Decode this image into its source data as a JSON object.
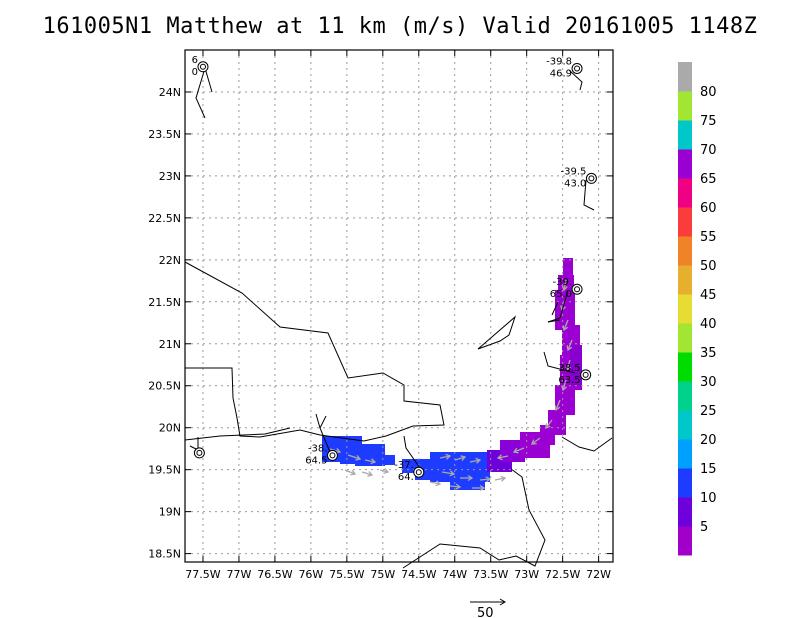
{
  "title": "161005N1 Matthew at 11 km (m/s) Valid 20161005 1148Z",
  "axes": {
    "lon_labels": [
      "77.5W",
      "77W",
      "76.5W",
      "76W",
      "75.5W",
      "75W",
      "74.5W",
      "74W",
      "73.5W",
      "73W",
      "72.5W",
      "72W"
    ],
    "lon_values": [
      -77.5,
      -77,
      -76.5,
      -76,
      -75.5,
      -75,
      -74.5,
      -74,
      -73.5,
      -73,
      -72.5,
      -72
    ],
    "lat_labels": [
      "18.5N",
      "19N",
      "19.5N",
      "20N",
      "20.5N",
      "21N",
      "21.5N",
      "22N",
      "22.5N",
      "23N",
      "23.5N",
      "24N"
    ],
    "lat_values": [
      18.5,
      19,
      19.5,
      20,
      20.5,
      21,
      21.5,
      22,
      22.5,
      23,
      23.5,
      24
    ],
    "lon_range": [
      -77.75,
      -71.8
    ],
    "lat_range": [
      18.4,
      24.5
    ]
  },
  "colorbar": {
    "labels": [
      "5",
      "10",
      "15",
      "20",
      "25",
      "30",
      "35",
      "40",
      "45",
      "50",
      "55",
      "60",
      "65",
      "70",
      "75",
      "80"
    ],
    "colors": [
      "#a000c8",
      "#6e00dc",
      "#1e3cff",
      "#00a0ff",
      "#00c8c8",
      "#00d28c",
      "#00dc00",
      "#a0e632",
      "#e6dc32",
      "#e6af2d",
      "#f08228",
      "#fa3c3c",
      "#f00082",
      "#9b00d2",
      "#00c8c8",
      "#a0e632",
      "#aaaaaa"
    ]
  },
  "stations": [
    {
      "lon": -77.5,
      "lat": 24.3,
      "t": "6",
      "v": "0"
    },
    {
      "lon": -72.3,
      "lat": 24.28,
      "t": "-39.8",
      "v": "46.9"
    },
    {
      "lon": -72.1,
      "lat": 22.97,
      "t": "-39.5",
      "v": "43.0"
    },
    {
      "lon": -72.3,
      "lat": 21.65,
      "t": "-39.",
      "v": "65.0"
    },
    {
      "lon": -72.18,
      "lat": 20.63,
      "t": "38.5",
      "v": "63.5"
    },
    {
      "lon": -75.7,
      "lat": 19.67,
      "t": "-38.",
      "v": "64.5"
    },
    {
      "lon": -74.5,
      "lat": 19.47,
      "t": "-37.",
      "v": "64."
    },
    {
      "lon": -77.55,
      "lat": 19.7,
      "t": "",
      "v": ""
    }
  ],
  "scale_arrow": {
    "label": "50"
  }
}
